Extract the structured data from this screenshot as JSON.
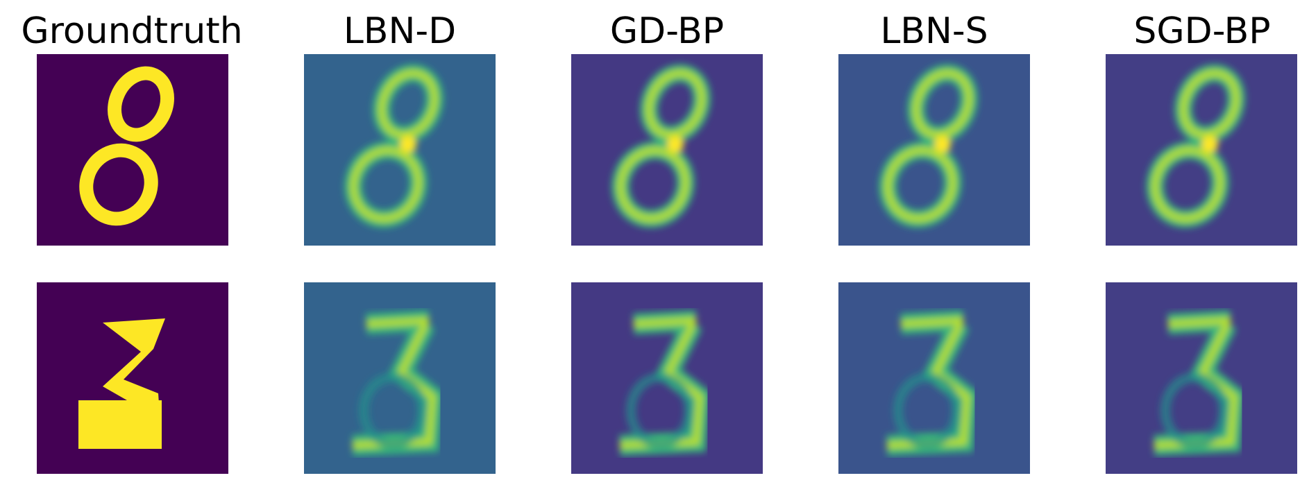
{
  "columns": [
    {
      "key": "groundtruth",
      "title": "Groundtruth",
      "background": "#440154"
    },
    {
      "key": "lbn-d",
      "title": "LBN-D",
      "background": "#33638d"
    },
    {
      "key": "gd-bp",
      "title": "GD-BP",
      "background": "#443983"
    },
    {
      "key": "lbn-s",
      "title": "LBN-S",
      "background": "#3a548c"
    },
    {
      "key": "sgd-bp",
      "title": "SGD-BP",
      "background": "#433e85"
    }
  ],
  "rows": [
    {
      "digit": "8"
    },
    {
      "digit": "3"
    }
  ],
  "colors": {
    "bright": "#fde725",
    "mid_bright": "#b5de2b",
    "mid": "#35b779",
    "teal": "#21918c",
    "dark": "#30126f"
  }
}
